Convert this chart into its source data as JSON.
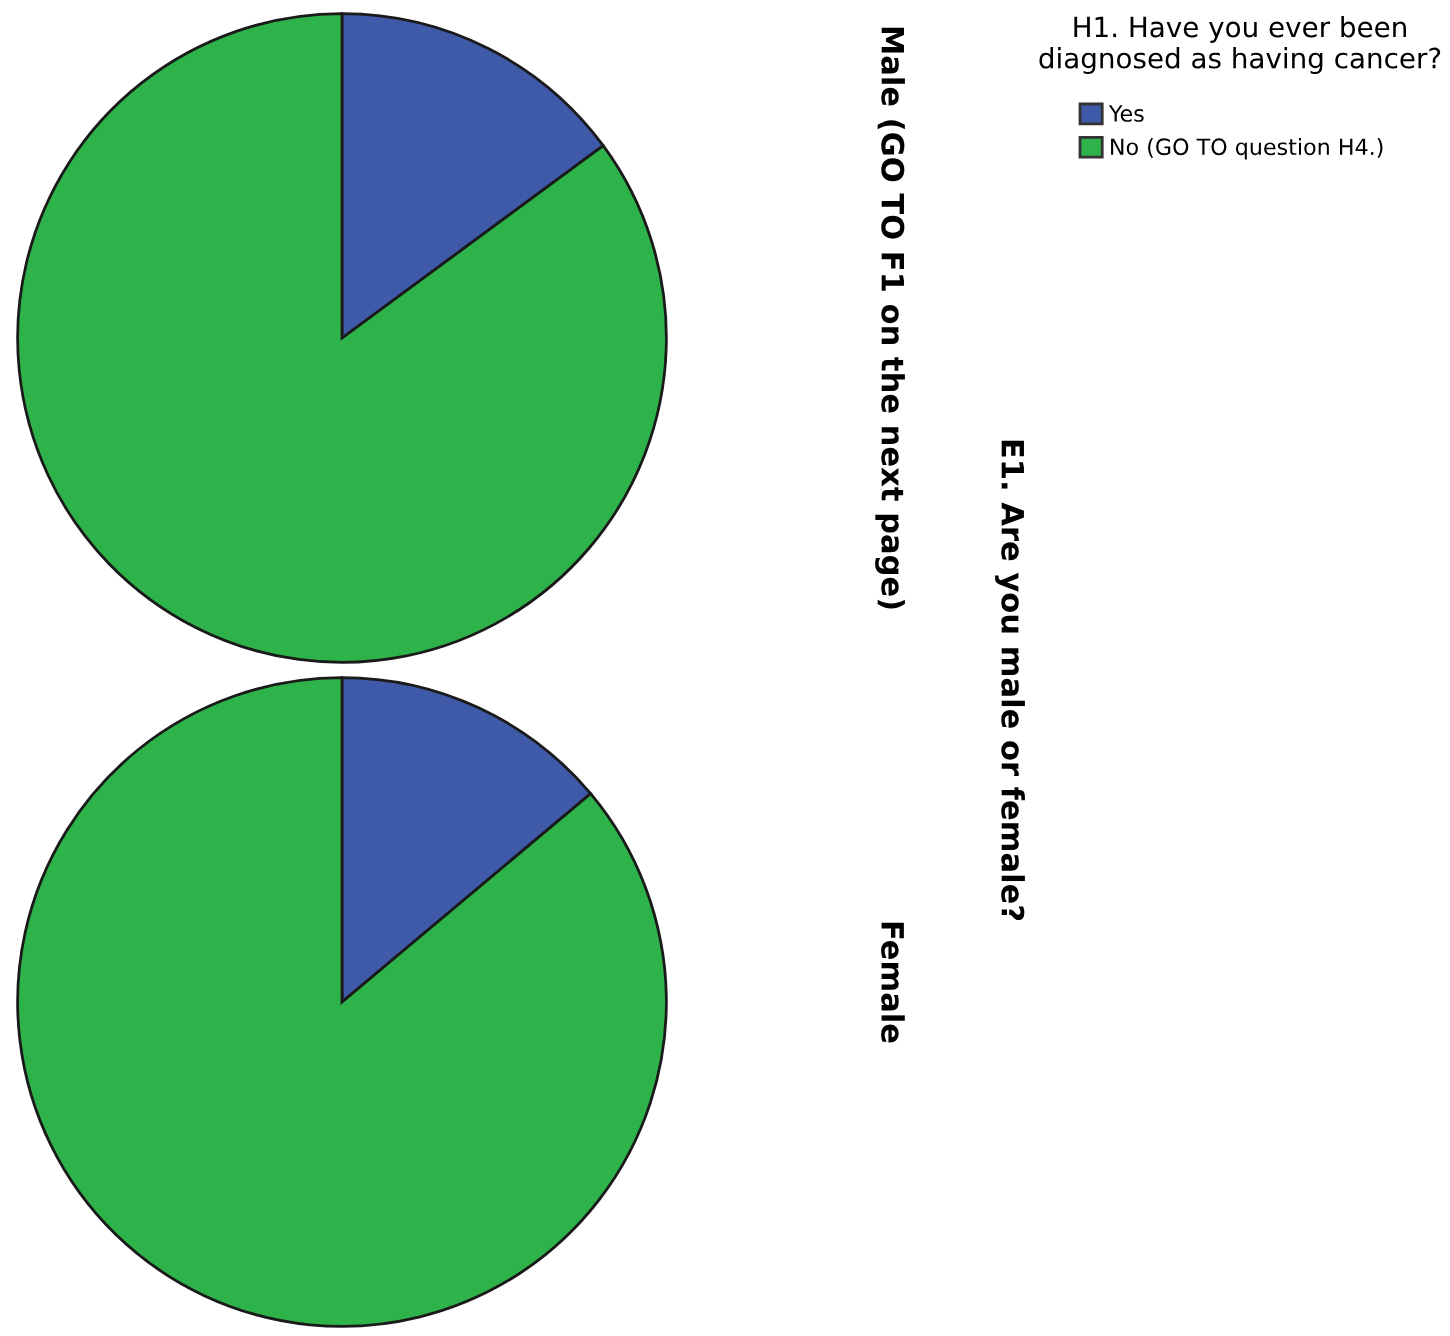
{
  "chart_data": [
    {
      "type": "pie",
      "title": "Male (GO TO F1 on the next page)",
      "categories": [
        "Yes",
        "No (GO TO question H4.)"
      ],
      "values": [
        14.9,
        85.1
      ],
      "colors": [
        "#3f5aa8",
        "#2db34a"
      ],
      "legend_title": "H1. Have you ever been diagnosed as having cancer?",
      "legend": "top right",
      "annotations": [
        "E1. Are you male or female?"
      ]
    },
    {
      "type": "pie",
      "title": "Female",
      "categories": [
        null,
        null
      ],
      "values": [
        13.9,
        86.1
      ],
      "colors": [
        "#3f5aa8",
        "#2db34a"
      ]
    }
  ]
}
